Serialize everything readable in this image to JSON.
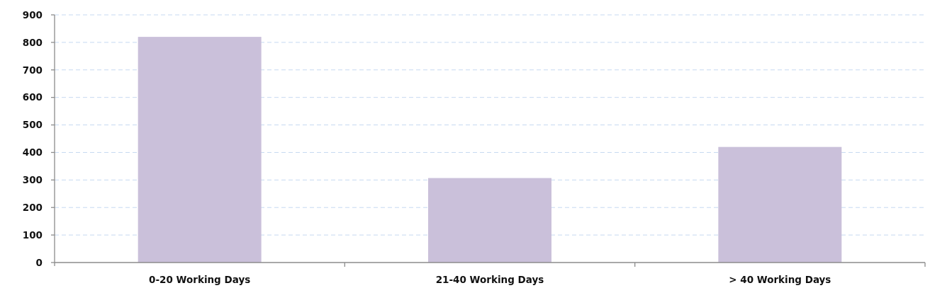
{
  "chart_data": {
    "type": "bar",
    "categories": [
      "0-20 Working Days",
      "21-40 Working Days",
      "> 40 Working Days"
    ],
    "values": [
      820,
      307,
      420
    ],
    "color": "#cac0da",
    "ylim": [
      0,
      900
    ],
    "yticks": [
      0,
      100,
      200,
      300,
      400,
      500,
      600,
      700,
      800,
      900
    ],
    "grid": "y"
  }
}
